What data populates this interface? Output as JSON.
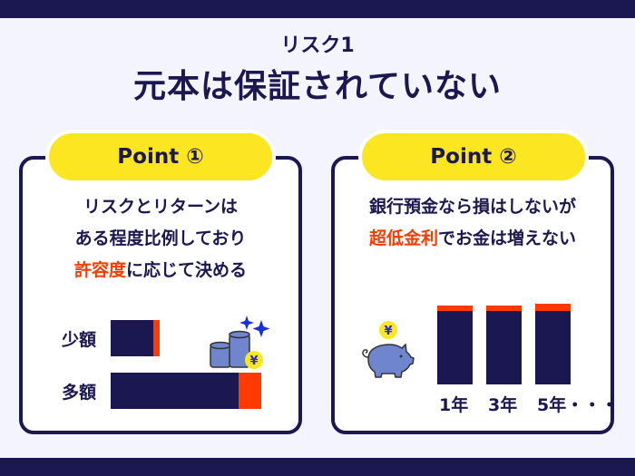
{
  "header": {
    "subtitle": "リスク1",
    "title": "元本は保証されていない"
  },
  "point1": {
    "badge": "Point ①",
    "lines": [
      "リスクとリターンは",
      "ある程度比例しており"
    ],
    "line3_highlight": "許容度",
    "line3_rest": "に応じて決める",
    "rows": [
      {
        "label": "少額",
        "total": 54,
        "return": 7
      },
      {
        "label": "多額",
        "total": 166,
        "return": 25
      }
    ],
    "icon": "coins-yen-icon"
  },
  "point2": {
    "badge": "Point ②",
    "line1": "銀行預金なら損はしないが",
    "line2_highlight": "超低金利",
    "line2_rest": "でお金は増えない",
    "bars": [
      {
        "label": "1年"
      },
      {
        "label": "3年"
      },
      {
        "label": "5年・・・"
      }
    ],
    "icon": "piggy-bank-yen-icon"
  },
  "colors": {
    "navy": "#1b1750",
    "accent": "#ff3a00",
    "yellow": "#fce621",
    "background": "#f4f4fe"
  }
}
